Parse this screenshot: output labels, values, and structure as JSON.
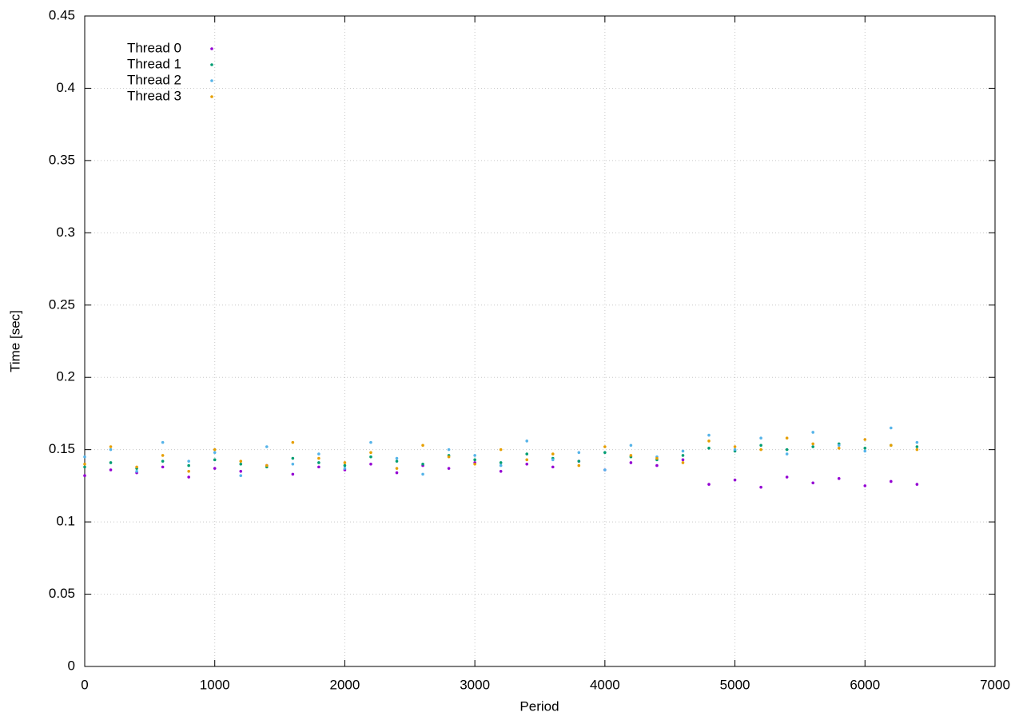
{
  "chart_data": {
    "type": "scatter",
    "xlabel": "Period",
    "ylabel": "Time [sec]",
    "xlim": [
      0,
      7000
    ],
    "xticks": [
      0,
      1000,
      2000,
      3000,
      4000,
      5000,
      6000,
      7000
    ],
    "ylim": [
      0,
      0.45
    ],
    "yticks": [
      0,
      0.05,
      0.1,
      0.15,
      0.2,
      0.25,
      0.3,
      0.35,
      0.4,
      0.45
    ],
    "grid": true,
    "legend": "top-left",
    "x": [
      0,
      200,
      400,
      600,
      800,
      1000,
      1200,
      1400,
      1600,
      1800,
      2000,
      2200,
      2400,
      2600,
      2800,
      3000,
      3200,
      3400,
      3600,
      3800,
      4000,
      4200,
      4400,
      4600,
      4800,
      5000,
      5200,
      5400,
      5600,
      5800,
      6000,
      6200,
      6400
    ],
    "series": [
      {
        "name": "Thread 0",
        "color": "#9400d3",
        "values": [
          0.132,
          0.136,
          0.134,
          0.138,
          0.131,
          0.137,
          0.135,
          0.139,
          0.133,
          0.138,
          0.136,
          0.14,
          0.134,
          0.139,
          0.137,
          0.141,
          0.135,
          0.14,
          0.138,
          0.142,
          0.136,
          0.141,
          0.139,
          0.143,
          0.126,
          0.129,
          0.124,
          0.131,
          0.127,
          0.13,
          0.125,
          0.128,
          0.126
        ]
      },
      {
        "name": "Thread 1",
        "color": "#009e73",
        "values": [
          0.138,
          0.141,
          0.137,
          0.142,
          0.139,
          0.143,
          0.14,
          0.138,
          0.144,
          0.141,
          0.139,
          0.145,
          0.142,
          0.14,
          0.146,
          0.143,
          0.141,
          0.147,
          0.144,
          0.142,
          0.148,
          0.145,
          0.143,
          0.146,
          0.151,
          0.149,
          0.153,
          0.15,
          0.152,
          0.154,
          0.151,
          0.153,
          0.152
        ]
      },
      {
        "name": "Thread 2",
        "color": "#56b4e9",
        "values": [
          0.145,
          0.15,
          0.135,
          0.155,
          0.142,
          0.148,
          0.132,
          0.152,
          0.14,
          0.147,
          0.137,
          0.155,
          0.144,
          0.133,
          0.15,
          0.146,
          0.139,
          0.156,
          0.143,
          0.148,
          0.136,
          0.153,
          0.145,
          0.149,
          0.16,
          0.15,
          0.158,
          0.147,
          0.162,
          0.153,
          0.149,
          0.165,
          0.155
        ]
      },
      {
        "name": "Thread 3",
        "color": "#e69f00",
        "values": [
          0.14,
          0.152,
          0.138,
          0.146,
          0.135,
          0.15,
          0.142,
          0.139,
          0.155,
          0.144,
          0.141,
          0.148,
          0.137,
          0.153,
          0.145,
          0.14,
          0.15,
          0.143,
          0.147,
          0.139,
          0.152,
          0.146,
          0.144,
          0.141,
          0.156,
          0.152,
          0.15,
          0.158,
          0.154,
          0.151,
          0.157,
          0.153,
          0.15
        ]
      }
    ]
  }
}
